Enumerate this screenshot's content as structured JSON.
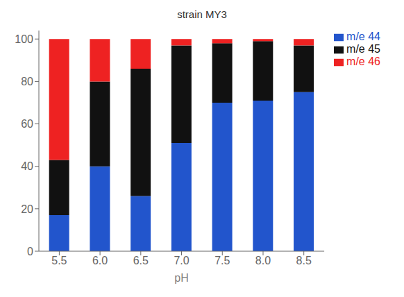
{
  "chart_data": {
    "type": "bar",
    "title": "strain MY3",
    "xlabel": "pH",
    "categories": [
      "5.5",
      "6.0",
      "6.5",
      "7.0",
      "7.5",
      "8.0",
      "8.5"
    ],
    "series": [
      {
        "name": "m/e 44",
        "color": "#2255cc",
        "values": [
          17,
          40,
          26,
          51,
          70,
          71,
          75
        ]
      },
      {
        "name": "m/e 45",
        "color": "#111111",
        "values": [
          26,
          40,
          60,
          46,
          28,
          28,
          22
        ]
      },
      {
        "name": "m/e 46",
        "color": "#ee2222",
        "values": [
          57,
          20,
          14,
          3,
          2,
          1,
          3
        ]
      }
    ],
    "stacked": true,
    "ylim": [
      0,
      104
    ],
    "yticks": [
      0,
      20,
      40,
      60,
      80,
      100
    ],
    "legend": "upper right",
    "grid": false
  }
}
